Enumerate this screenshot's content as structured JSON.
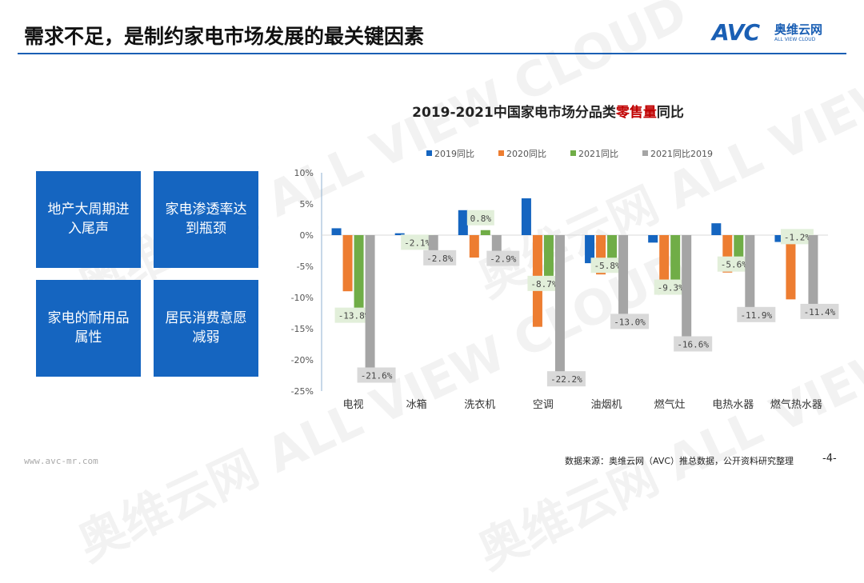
{
  "header": {
    "title": "需求不足，是制约家电市场发展的最关键因素",
    "logo": {
      "mark": "AVC",
      "cn": "奥维云网",
      "en": "ALL VIEW CLOUD"
    }
  },
  "boxes": [
    "地产大周期进入尾声",
    "家电渗透率达到瓶颈",
    "家电的耐用品属性",
    "居民消费意愿减弱"
  ],
  "footer": {
    "source": "数据来源：奥维云网（AVC）推总数据，公开资料研究整理",
    "page": "-4-",
    "url": "www.avc-mr.com"
  },
  "watermark": "奥维云网 ALL VIEW CLOUD",
  "chart_data": {
    "type": "bar",
    "title_parts": [
      "2019-2021中国家电市场分品类",
      "零售量",
      "同比"
    ],
    "title_highlight_color": "#c00000",
    "categories": [
      "电视",
      "冰箱",
      "洗衣机",
      "空调",
      "油烟机",
      "燃气灶",
      "电热水器",
      "燃气热水器"
    ],
    "ylim": [
      -25,
      10
    ],
    "yticks": [
      "10%",
      "5%",
      "0%",
      "-5%",
      "-10%",
      "-15%",
      "-20%",
      "-25%"
    ],
    "legend_position": "top",
    "series": [
      {
        "name": "2019同比",
        "color": "#1565c0",
        "values": [
          1.1,
          0.3,
          4.0,
          5.9,
          -4.5,
          -1.2,
          1.9,
          -1.1
        ]
      },
      {
        "name": "2020同比",
        "color": "#ed7d31",
        "values": [
          -9.0,
          -0.6,
          -3.6,
          -14.7,
          -6.3,
          -8.1,
          -6.0,
          -10.3
        ]
      },
      {
        "name": "2021同比",
        "color": "#70ad47",
        "values": [
          -13.8,
          -2.1,
          0.8,
          -8.7,
          -5.8,
          -9.3,
          -5.6,
          -1.2
        ],
        "labels": [
          "-13.8%",
          "-2.1%",
          "0.8%",
          "-8.7%",
          "-5.8%",
          "-9.3%",
          "-5.6%",
          "-1.2%"
        ]
      },
      {
        "name": "2021同比2019",
        "color": "#a5a5a5",
        "values": [
          -21.6,
          -2.8,
          -2.9,
          -22.2,
          -13.0,
          -16.6,
          -11.9,
          -11.4
        ],
        "labels": [
          "-21.6%",
          "-2.8%",
          "-2.9%",
          "-22.2%",
          "-13.0%",
          "-16.6%",
          "-11.9%",
          "-11.4%"
        ]
      }
    ]
  }
}
